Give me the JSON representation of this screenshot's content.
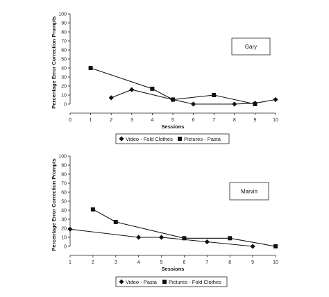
{
  "chart_data": [
    {
      "type": "line",
      "title": "",
      "label_box": "Gary",
      "xlabel": "Sessions",
      "ylabel": "Percentage Error Correction Prompts",
      "xlim": [
        0,
        10
      ],
      "ylim": [
        0,
        100
      ],
      "x_ticks": [
        "0",
        "1",
        "2",
        "3",
        "4",
        "5",
        "6",
        "7",
        "8",
        "9",
        "10"
      ],
      "y_ticks": [
        "0",
        "10",
        "20",
        "30",
        "40",
        "50",
        "60",
        "70",
        "80",
        "90",
        "100"
      ],
      "legend_position": "bottom",
      "series": [
        {
          "name": "Video - Fold Clothes",
          "marker": "diamond",
          "x": [
            2,
            3,
            5,
            6,
            8,
            9,
            10
          ],
          "y": [
            7,
            16,
            5,
            0,
            0,
            1,
            5
          ]
        },
        {
          "name": "Pictures - Pasta",
          "marker": "square",
          "x": [
            1,
            4,
            5,
            7,
            9
          ],
          "y": [
            40,
            17,
            5,
            10,
            0
          ]
        }
      ]
    },
    {
      "type": "line",
      "title": "",
      "label_box": "Marvin",
      "xlabel": "Sessions",
      "ylabel": "Percentage Error  Correction Prompts",
      "xlim": [
        1,
        10
      ],
      "ylim": [
        0,
        100
      ],
      "x_ticks": [
        "1",
        "2",
        "3",
        "4",
        "5",
        "6",
        "7",
        "8",
        "9",
        "10"
      ],
      "y_ticks": [
        "0",
        "10",
        "20",
        "30",
        "40",
        "50",
        "60",
        "70",
        "80",
        "90",
        "100"
      ],
      "legend_position": "bottom",
      "series": [
        {
          "name": "Video - Pasta",
          "marker": "diamond",
          "x": [
            1,
            4,
            5,
            7,
            9
          ],
          "y": [
            19,
            10,
            10,
            5,
            0
          ]
        },
        {
          "name": "Pictures - Fold Clothes",
          "marker": "square",
          "x": [
            2,
            3,
            6,
            8,
            10
          ],
          "y": [
            41,
            27,
            9,
            9,
            0
          ]
        }
      ]
    }
  ]
}
